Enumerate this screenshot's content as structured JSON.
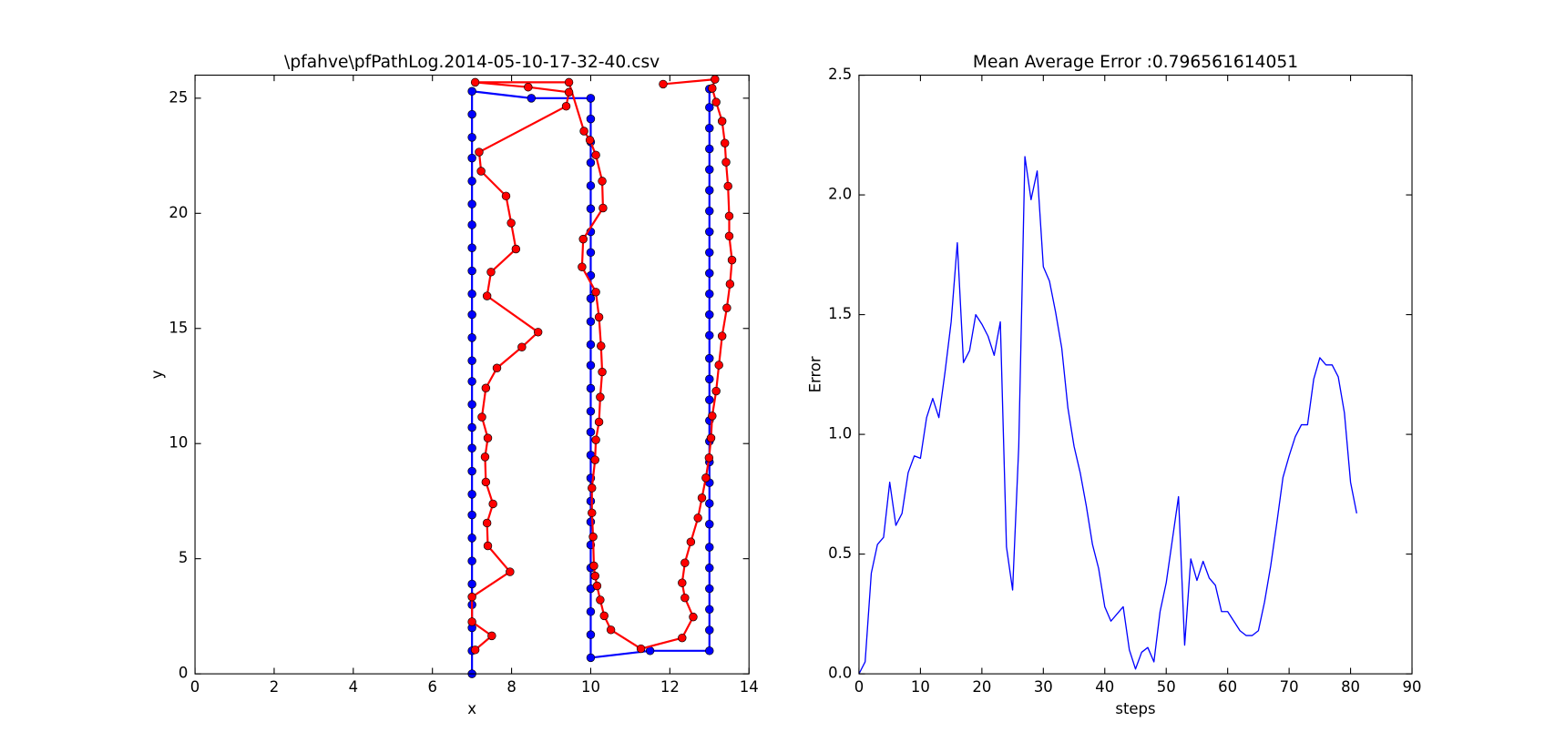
{
  "chart_data": [
    {
      "type": "line",
      "markers": true,
      "title": "\\pfahve\\pfPathLog.2014-05-10-17-32-40.csv",
      "x_label": "x",
      "y_label": "y",
      "xlim": [
        0,
        14
      ],
      "xticks": [
        0,
        2,
        4,
        6,
        8,
        10,
        12,
        14
      ],
      "ylim": [
        0,
        26
      ],
      "yticks": [
        0,
        5,
        10,
        15,
        20,
        25
      ],
      "series": [
        {
          "color": "#0000ff",
          "x": [
            7,
            7,
            7,
            7,
            7,
            7,
            7,
            7,
            7,
            7,
            7,
            7,
            7,
            7,
            7,
            7,
            7,
            7,
            7,
            7,
            7,
            7,
            7,
            7,
            7,
            7,
            7,
            8.5,
            10,
            10,
            10,
            10,
            10,
            10,
            10,
            10,
            10,
            10,
            10,
            10,
            10,
            10,
            10,
            10,
            10,
            10,
            10,
            10,
            10,
            10,
            10,
            10,
            10,
            10,
            11.5,
            13,
            13,
            13,
            13,
            13,
            13,
            13,
            13,
            13,
            13,
            13,
            13,
            13,
            13,
            13,
            13,
            13,
            13,
            13,
            13,
            13,
            13,
            13,
            13,
            13,
            13,
            13,
            13
          ],
          "values": [
            0,
            1.0,
            2.0,
            3.0,
            3.9,
            4.9,
            5.9,
            6.9,
            7.8,
            8.8,
            9.8,
            10.7,
            11.7,
            12.7,
            13.6,
            14.6,
            15.6,
            16.5,
            17.5,
            18.5,
            19.5,
            20.4,
            21.4,
            22.4,
            23.3,
            24.3,
            25.3,
            25.0,
            25.0,
            24.1,
            23.1,
            22.2,
            21.2,
            20.2,
            19.2,
            18.3,
            17.3,
            16.3,
            15.3,
            14.3,
            13.4,
            12.4,
            11.4,
            10.5,
            9.5,
            8.5,
            7.5,
            6.6,
            5.6,
            4.6,
            3.7,
            2.7,
            1.7,
            0.7,
            1.0,
            1.0,
            1.9,
            2.8,
            3.7,
            4.6,
            5.5,
            6.5,
            7.4,
            8.3,
            9.2,
            10.1,
            11.0,
            11.9,
            12.8,
            13.7,
            14.7,
            15.6,
            16.5,
            17.4,
            18.3,
            19.2,
            20.1,
            21.0,
            21.9,
            22.8,
            23.7,
            24.6,
            25.4
          ]
        },
        {
          "color": "#ff0000",
          "x": [
            7.08,
            7.5,
            7.0,
            7.0,
            7.96,
            7.4,
            7.38,
            7.53,
            7.35,
            7.33,
            7.4,
            7.25,
            7.35,
            7.63,
            8.26,
            8.67,
            7.38,
            7.48,
            8.11,
            7.99,
            7.86,
            7.23,
            7.18,
            9.38,
            9.45,
            8.42,
            7.08,
            9.45,
            9.83,
            9.98,
            10.13,
            10.29,
            10.31,
            9.81,
            9.78,
            10.13,
            10.21,
            10.26,
            10.29,
            10.24,
            10.21,
            10.13,
            10.11,
            10.03,
            10.03,
            10.06,
            10.08,
            10.11,
            10.16,
            10.24,
            10.34,
            10.51,
            11.27,
            12.31,
            12.59,
            12.38,
            12.31,
            12.38,
            12.53,
            12.71,
            12.81,
            12.91,
            12.99,
            13.04,
            13.07,
            13.17,
            13.24,
            13.32,
            13.44,
            13.52,
            13.57,
            13.5,
            13.5,
            13.47,
            13.42,
            13.39,
            13.32,
            13.17,
            13.07,
            13.14,
            11.83
          ],
          "values": [
            1.04,
            1.65,
            2.26,
            3.34,
            4.43,
            5.56,
            6.55,
            7.38,
            8.33,
            9.42,
            10.24,
            11.15,
            12.41,
            13.28,
            14.19,
            14.84,
            16.41,
            17.45,
            18.45,
            19.58,
            20.75,
            21.83,
            22.66,
            24.65,
            25.26,
            25.48,
            25.69,
            25.69,
            23.57,
            23.18,
            22.53,
            21.4,
            20.23,
            18.88,
            17.67,
            16.58,
            15.49,
            14.24,
            13.11,
            12.02,
            10.94,
            10.16,
            9.29,
            8.07,
            6.99,
            5.95,
            4.69,
            4.25,
            3.82,
            3.21,
            2.52,
            1.91,
            1.09,
            1.56,
            2.47,
            3.3,
            3.95,
            4.82,
            5.73,
            6.77,
            7.64,
            8.51,
            9.38,
            10.24,
            11.2,
            12.28,
            13.41,
            14.67,
            15.89,
            16.93,
            17.97,
            19.01,
            19.88,
            21.18,
            22.22,
            23.05,
            24.0,
            24.83,
            25.43,
            25.82,
            25.61
          ]
        }
      ]
    },
    {
      "type": "line",
      "markers": false,
      "title": "Mean Average Error :0.796561614051",
      "x_label": "steps",
      "y_label": "Error",
      "xlim": [
        0,
        90
      ],
      "xticks": [
        0,
        10,
        20,
        30,
        40,
        50,
        60,
        70,
        80,
        90
      ],
      "ylim": [
        0,
        2.5
      ],
      "yticks": [
        {
          "value": 0,
          "label": "0.0"
        },
        0.5,
        {
          "value": 1,
          "label": "1.0"
        },
        1.5,
        {
          "value": 2,
          "label": "2.0"
        },
        2.5
      ],
      "x": [
        0,
        1,
        2,
        3,
        4,
        5,
        6,
        7,
        8,
        9,
        10,
        11,
        12,
        13,
        14,
        15,
        16,
        17,
        18,
        19,
        20,
        21,
        22,
        23,
        24,
        25,
        26,
        27,
        28,
        29,
        30,
        31,
        32,
        33,
        34,
        35,
        36,
        37,
        38,
        39,
        40,
        41,
        42,
        43,
        44,
        45,
        46,
        47,
        48,
        49,
        50,
        51,
        52,
        53,
        54,
        55,
        56,
        57,
        58,
        59,
        60,
        61,
        62,
        63,
        64,
        65,
        66,
        67,
        68,
        69,
        70,
        71,
        72,
        73,
        74,
        75,
        76,
        77,
        78,
        79,
        80,
        81
      ],
      "series": [
        {
          "color": "#0000ff",
          "values": [
            0.0,
            0.05,
            0.42,
            0.54,
            0.57,
            0.8,
            0.62,
            0.67,
            0.84,
            0.91,
            0.9,
            1.07,
            1.15,
            1.07,
            1.26,
            1.47,
            1.8,
            1.3,
            1.35,
            1.5,
            1.46,
            1.41,
            1.33,
            1.47,
            0.53,
            0.35,
            0.95,
            2.16,
            1.98,
            2.1,
            1.7,
            1.64,
            1.51,
            1.36,
            1.11,
            0.95,
            0.84,
            0.7,
            0.54,
            0.44,
            0.28,
            0.22,
            0.25,
            0.28,
            0.1,
            0.02,
            0.09,
            0.11,
            0.05,
            0.26,
            0.38,
            0.56,
            0.74,
            0.12,
            0.48,
            0.39,
            0.47,
            0.4,
            0.37,
            0.26,
            0.26,
            0.22,
            0.18,
            0.16,
            0.16,
            0.18,
            0.3,
            0.45,
            0.63,
            0.82,
            0.91,
            0.99,
            1.04,
            1.04,
            1.23,
            1.32,
            1.29,
            1.29,
            1.24,
            1.09,
            0.8,
            0.67
          ]
        }
      ]
    }
  ]
}
